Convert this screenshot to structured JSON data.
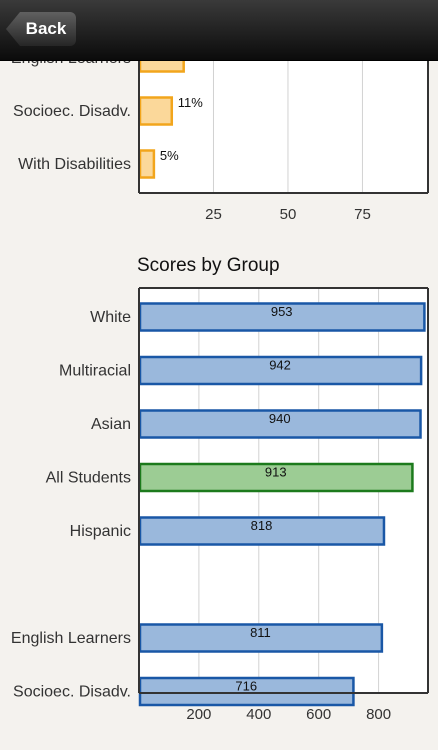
{
  "nav": {
    "back_label": "Back"
  },
  "charts": {
    "top": {
      "chart_data": {
        "type": "bar",
        "orientation": "horizontal",
        "title": "",
        "categories": [
          "English Learners",
          "Socioec. Disadv.",
          "With Disabilities"
        ],
        "values": [
          15,
          11,
          5
        ],
        "value_labels": [
          "",
          "11%",
          "5%"
        ],
        "xticks": [
          25,
          50,
          75
        ],
        "xlim": [
          0,
          97
        ],
        "grid": true,
        "bar_color": "#fbd89a",
        "bar_border": "#f2a51c"
      }
    },
    "bottom": {
      "chart_data": {
        "type": "bar",
        "orientation": "horizontal",
        "title": "Scores by Group",
        "categories": [
          "White",
          "Multiracial",
          "Asian",
          "All Students",
          "Hispanic",
          "",
          "English Learners",
          "Socioec. Disadv."
        ],
        "values": [
          953,
          942,
          940,
          913,
          818,
          null,
          811,
          716
        ],
        "value_labels": [
          "953",
          "942",
          "940",
          "913",
          "818",
          "",
          "811",
          "716"
        ],
        "highlight": [
          false,
          false,
          false,
          true,
          false,
          false,
          false,
          false
        ],
        "xticks": [
          200,
          400,
          600,
          800
        ],
        "xlim": [
          0,
          965
        ],
        "grid": true,
        "bar_color": "#9ab8dc",
        "bar_border": "#1957a6",
        "highlight_color": "#9ccc94",
        "highlight_border": "#1c7a1c"
      }
    }
  }
}
